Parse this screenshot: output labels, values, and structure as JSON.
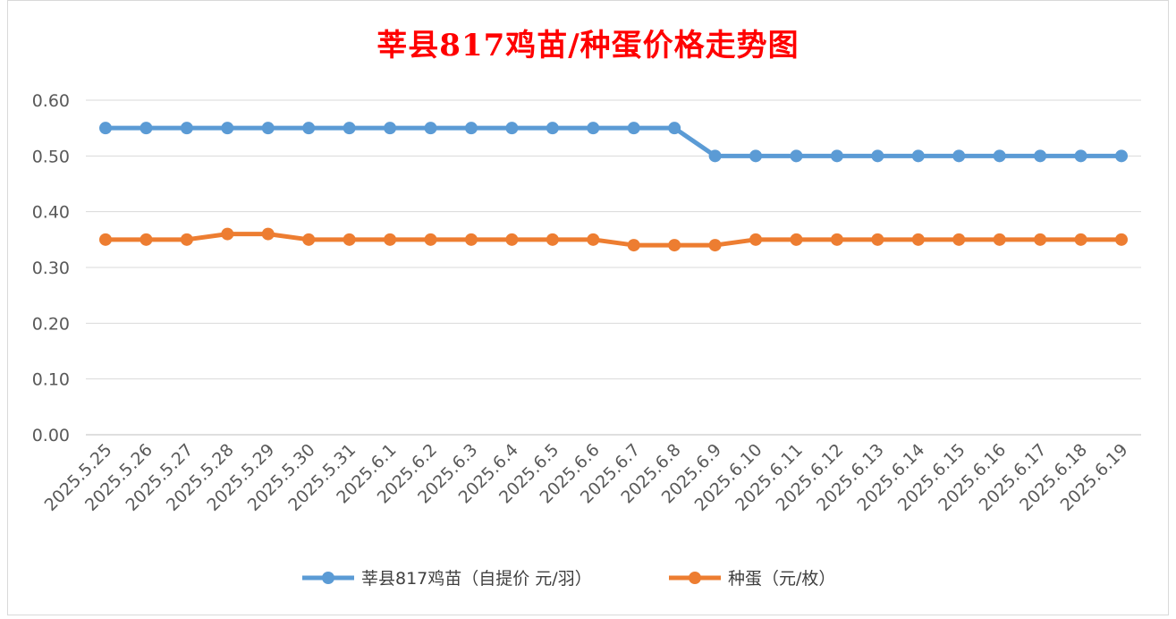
{
  "chart_data": {
    "type": "line",
    "title": "莘县817鸡苗/种蛋价格走势图",
    "x": [
      "2025.5.25",
      "2025.5.26",
      "2025.5.27",
      "2025.5.28",
      "2025.5.29",
      "2025.5.30",
      "2025.5.31",
      "2025.6.1",
      "2025.6.2",
      "2025.6.3",
      "2025.6.4",
      "2025.6.5",
      "2025.6.6",
      "2025.6.7",
      "2025.6.8",
      "2025.6.9",
      "2025.6.10",
      "2025.6.11",
      "2025.6.12",
      "2025.6.13",
      "2025.6.14",
      "2025.6.15",
      "2025.6.16",
      "2025.6.17",
      "2025.6.18",
      "2025.6.19"
    ],
    "series": [
      {
        "name": "莘县817鸡苗（自提价 元/羽）",
        "color": "#5b9bd5",
        "values": [
          0.55,
          0.55,
          0.55,
          0.55,
          0.55,
          0.55,
          0.55,
          0.55,
          0.55,
          0.55,
          0.55,
          0.55,
          0.55,
          0.55,
          0.55,
          0.5,
          0.5,
          0.5,
          0.5,
          0.5,
          0.5,
          0.5,
          0.5,
          0.5,
          0.5,
          0.5
        ]
      },
      {
        "name": "种蛋（元/枚）",
        "color": "#ed7d31",
        "values": [
          0.35,
          0.35,
          0.35,
          0.36,
          0.36,
          0.35,
          0.35,
          0.35,
          0.35,
          0.35,
          0.35,
          0.35,
          0.35,
          0.34,
          0.34,
          0.34,
          0.35,
          0.35,
          0.35,
          0.35,
          0.35,
          0.35,
          0.35,
          0.35,
          0.35,
          0.35
        ]
      }
    ],
    "ylim": [
      0,
      0.6
    ],
    "yticks": [
      "0.00",
      "0.10",
      "0.20",
      "0.30",
      "0.40",
      "0.50",
      "0.60"
    ],
    "grid": true,
    "legend": "bottom",
    "title_color": "#ff0000"
  }
}
